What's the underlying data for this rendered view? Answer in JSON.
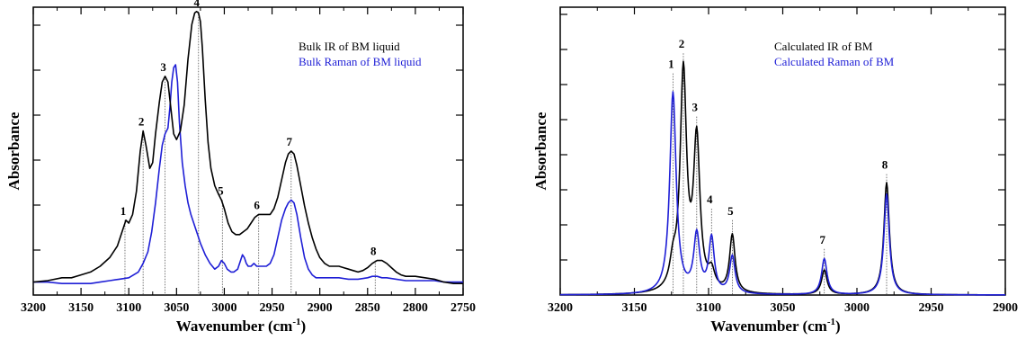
{
  "chart_data": [
    {
      "type": "line",
      "xlabel": "Wavenumber (cm",
      "xlabel_sup": "-1",
      "xlabel_tail": ")",
      "ylabel": "Absorbance",
      "xlim": [
        3200,
        2750
      ],
      "ylim": [
        0,
        1
      ],
      "x_ticks": [
        3200,
        3150,
        3100,
        3050,
        3000,
        2950,
        2900,
        2850,
        2800,
        2750
      ],
      "x_tick_labels": [
        "3200",
        "3150",
        "3100",
        "3050",
        "3000",
        "2950",
        "2900",
        "2850",
        "2800",
        "2750"
      ],
      "legend_position": "top-right",
      "series": [
        {
          "name": "Bulk IR of BM liquid",
          "color": "#000000",
          "x": [
            3200,
            3185,
            3170,
            3160,
            3150,
            3140,
            3130,
            3120,
            3112,
            3106,
            3103,
            3100,
            3096,
            3092,
            3088,
            3085,
            3082,
            3078,
            3075,
            3072,
            3068,
            3065,
            3062,
            3059,
            3056,
            3053,
            3050,
            3046,
            3042,
            3038,
            3034,
            3031,
            3029,
            3027,
            3025,
            3023,
            3020,
            3017,
            3014,
            3010,
            3006,
            3003,
            3000,
            2996,
            2992,
            2988,
            2984,
            2980,
            2976,
            2972,
            2968,
            2964,
            2960,
            2956,
            2952,
            2948,
            2944,
            2940,
            2936,
            2933,
            2930,
            2927,
            2924,
            2920,
            2916,
            2912,
            2908,
            2904,
            2900,
            2895,
            2890,
            2885,
            2880,
            2875,
            2870,
            2865,
            2860,
            2855,
            2850,
            2845,
            2840,
            2835,
            2830,
            2825,
            2820,
            2815,
            2810,
            2800,
            2790,
            2780,
            2770,
            2760,
            2750
          ],
          "values": [
            0.045,
            0.05,
            0.06,
            0.06,
            0.07,
            0.08,
            0.1,
            0.13,
            0.17,
            0.23,
            0.26,
            0.25,
            0.28,
            0.36,
            0.5,
            0.57,
            0.52,
            0.44,
            0.46,
            0.56,
            0.67,
            0.74,
            0.76,
            0.74,
            0.65,
            0.56,
            0.54,
            0.57,
            0.66,
            0.82,
            0.94,
            0.98,
            0.985,
            0.98,
            0.95,
            0.86,
            0.68,
            0.53,
            0.44,
            0.38,
            0.35,
            0.33,
            0.3,
            0.25,
            0.22,
            0.21,
            0.21,
            0.22,
            0.23,
            0.25,
            0.27,
            0.28,
            0.28,
            0.28,
            0.28,
            0.3,
            0.34,
            0.4,
            0.46,
            0.49,
            0.5,
            0.49,
            0.45,
            0.38,
            0.31,
            0.25,
            0.2,
            0.16,
            0.13,
            0.11,
            0.1,
            0.1,
            0.1,
            0.095,
            0.09,
            0.085,
            0.08,
            0.085,
            0.095,
            0.11,
            0.12,
            0.12,
            0.11,
            0.095,
            0.08,
            0.07,
            0.065,
            0.065,
            0.06,
            0.055,
            0.045,
            0.04,
            0.04
          ]
        },
        {
          "name": "Bulk Raman of BM liquid",
          "color": "#1f1fd6",
          "x": [
            3200,
            3185,
            3170,
            3160,
            3150,
            3140,
            3130,
            3120,
            3110,
            3100,
            3090,
            3085,
            3080,
            3076,
            3072,
            3068,
            3065,
            3062,
            3059,
            3057,
            3055,
            3053,
            3051,
            3049,
            3047,
            3044,
            3041,
            3038,
            3035,
            3030,
            3025,
            3020,
            3015,
            3010,
            3006,
            3003,
            3000,
            2997,
            2993,
            2990,
            2986,
            2983,
            2981,
            2979,
            2977,
            2975,
            2972,
            2969,
            2966,
            2963,
            2960,
            2956,
            2952,
            2948,
            2944,
            2940,
            2936,
            2933,
            2930,
            2927,
            2924,
            2920,
            2916,
            2912,
            2908,
            2904,
            2900,
            2890,
            2880,
            2870,
            2860,
            2850,
            2845,
            2840,
            2835,
            2830,
            2820,
            2810,
            2800,
            2790,
            2780,
            2770,
            2760,
            2750
          ],
          "values": [
            0.045,
            0.045,
            0.04,
            0.04,
            0.04,
            0.04,
            0.045,
            0.05,
            0.055,
            0.06,
            0.08,
            0.11,
            0.15,
            0.22,
            0.32,
            0.44,
            0.52,
            0.56,
            0.58,
            0.65,
            0.74,
            0.79,
            0.8,
            0.74,
            0.6,
            0.46,
            0.38,
            0.32,
            0.28,
            0.23,
            0.18,
            0.14,
            0.11,
            0.09,
            0.1,
            0.12,
            0.11,
            0.09,
            0.08,
            0.08,
            0.09,
            0.12,
            0.14,
            0.13,
            0.11,
            0.1,
            0.1,
            0.11,
            0.1,
            0.1,
            0.1,
            0.1,
            0.11,
            0.14,
            0.2,
            0.26,
            0.3,
            0.32,
            0.33,
            0.32,
            0.28,
            0.2,
            0.13,
            0.09,
            0.07,
            0.06,
            0.06,
            0.06,
            0.06,
            0.055,
            0.055,
            0.06,
            0.065,
            0.065,
            0.06,
            0.06,
            0.055,
            0.05,
            0.05,
            0.05,
            0.05,
            0.045,
            0.045,
            0.045
          ]
        }
      ],
      "peaks": [
        {
          "label": "1",
          "x": 3104,
          "y": 0.26
        },
        {
          "label": "2",
          "x": 3085,
          "y": 0.57
        },
        {
          "label": "3",
          "x": 3062,
          "y": 0.76
        },
        {
          "label": "4",
          "x": 3027,
          "y": 0.985
        },
        {
          "label": "5",
          "x": 3002,
          "y": 0.33
        },
        {
          "label": "6",
          "x": 2964,
          "y": 0.28
        },
        {
          "label": "7",
          "x": 2930,
          "y": 0.5
        },
        {
          "label": "8",
          "x": 2842,
          "y": 0.12
        }
      ]
    },
    {
      "type": "line",
      "xlabel": "Wavenumber (cm",
      "xlabel_sup": "-1",
      "xlabel_tail": ")",
      "ylabel": "Absorbance",
      "xlim": [
        3200,
        2900
      ],
      "ylim": [
        0,
        1
      ],
      "x_ticks": [
        3200,
        3150,
        3100,
        3050,
        3000,
        2950,
        2900
      ],
      "x_tick_labels": [
        "3200",
        "3150",
        "3100",
        "3050",
        "3000",
        "2950",
        "2900"
      ],
      "legend_position": "top-right",
      "series": [
        {
          "name": "Calculated IR of BM",
          "color": "#000000",
          "peaks_lorentz": [
            {
              "center": 3117,
              "height": 0.76,
              "hwhm": 2.6
            },
            {
              "center": 3108,
              "height": 0.52,
              "hwhm": 2.6
            },
            {
              "center": 3124,
              "height": 0.08,
              "hwhm": 2.6
            },
            {
              "center": 3098,
              "height": 0.06,
              "hwhm": 2.6
            },
            {
              "center": 3084,
              "height": 0.2,
              "hwhm": 2.2
            },
            {
              "center": 3022,
              "height": 0.085,
              "hwhm": 2.2
            },
            {
              "center": 2980,
              "height": 0.39,
              "hwhm": 2.2
            }
          ]
        },
        {
          "name": "Calculated Raman of BM",
          "color": "#1f1fd6",
          "peaks_lorentz": [
            {
              "center": 3124,
              "height": 0.7,
              "hwhm": 2.6
            },
            {
              "center": 3108,
              "height": 0.2,
              "hwhm": 2.4
            },
            {
              "center": 3098,
              "height": 0.19,
              "hwhm": 2.2
            },
            {
              "center": 3084,
              "height": 0.13,
              "hwhm": 2.2
            },
            {
              "center": 3022,
              "height": 0.125,
              "hwhm": 2.2
            },
            {
              "center": 2980,
              "height": 0.35,
              "hwhm": 2.2
            }
          ]
        }
      ],
      "peaks": [
        {
          "label": "1",
          "x": 3124,
          "y": 0.77
        },
        {
          "label": "2",
          "x": 3117,
          "y": 0.84
        },
        {
          "label": "3",
          "x": 3108,
          "y": 0.62
        },
        {
          "label": "4",
          "x": 3098,
          "y": 0.3
        },
        {
          "label": "5",
          "x": 3084,
          "y": 0.26
        },
        {
          "label": "7",
          "x": 3022,
          "y": 0.16
        },
        {
          "label": "8",
          "x": 2980,
          "y": 0.42
        }
      ]
    }
  ]
}
